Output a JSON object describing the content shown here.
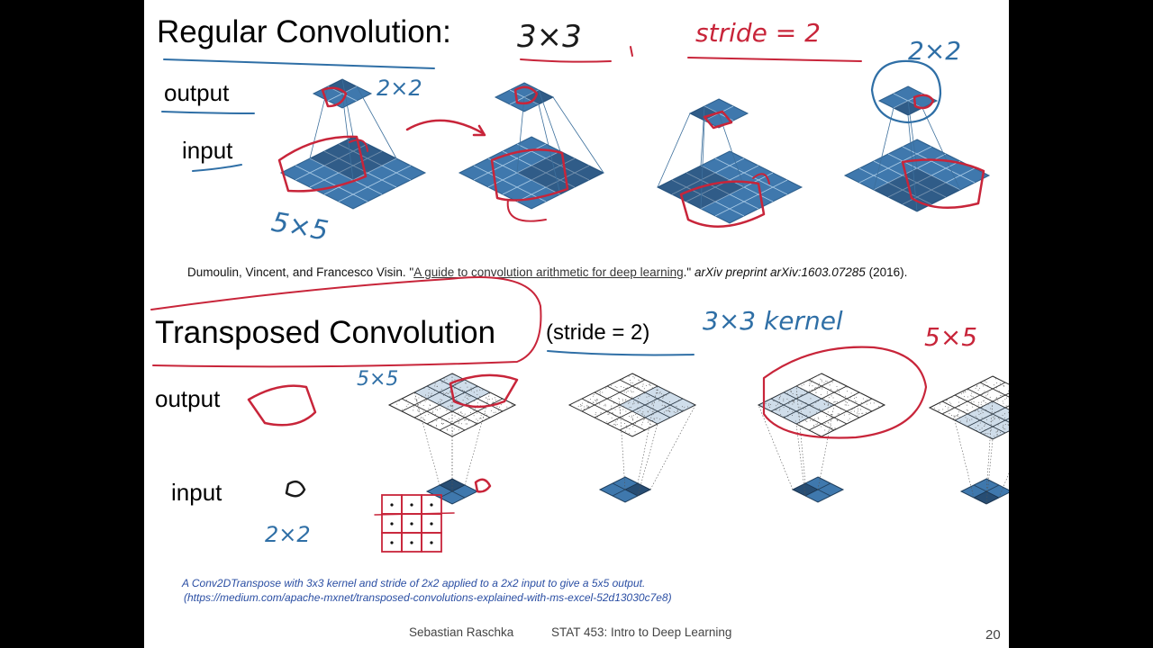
{
  "colors": {
    "grid_blue": "#3f78ad",
    "grid_line": "#aacbe6",
    "grid_border": "#2d5f8c",
    "ink_red": "#c8253a",
    "ink_blue": "#2f6fa6",
    "caption_blue": "#2a4ea3"
  },
  "regular": {
    "title": "Regular Convolution:",
    "output_label": "output",
    "input_label": "input"
  },
  "citation": {
    "authors": "Dumoulin, Vincent, and Francesco Visin.",
    "ref_title": "A guide to convolution arithmetic for deep learning",
    "venue": "arXiv preprint arXiv:1603.07285",
    "year": "(2016)."
  },
  "transposed": {
    "title": "Transposed Convolution",
    "stride_note": "(stride = 2)",
    "output_label": "output",
    "input_label": "input"
  },
  "caption": {
    "line1": "A Conv2DTranspose with 3x3 kernel and stride of 2x2 applied to a 2x2 input to give a 5x5 output.",
    "line2": "(https://medium.com/apache-mxnet/transposed-convolutions-explained-with-ms-excel-52d13030c7e8)"
  },
  "footer": {
    "author": "Sebastian Raschka",
    "course": "STAT 453: Intro to Deep Learning",
    "page_number": "20"
  },
  "annotations": {
    "kernel_3x3": "3×3",
    "stride_2": "stride = 2",
    "size_2x2_a": "2×2",
    "size_2x2_b": "2×2",
    "size_5x5_a": "5×5",
    "size_5x5_b": "5×5",
    "kernel_note": "3×3 kernel",
    "size_5x5_c": "5×5",
    "size_2x2_c": "2×2"
  }
}
